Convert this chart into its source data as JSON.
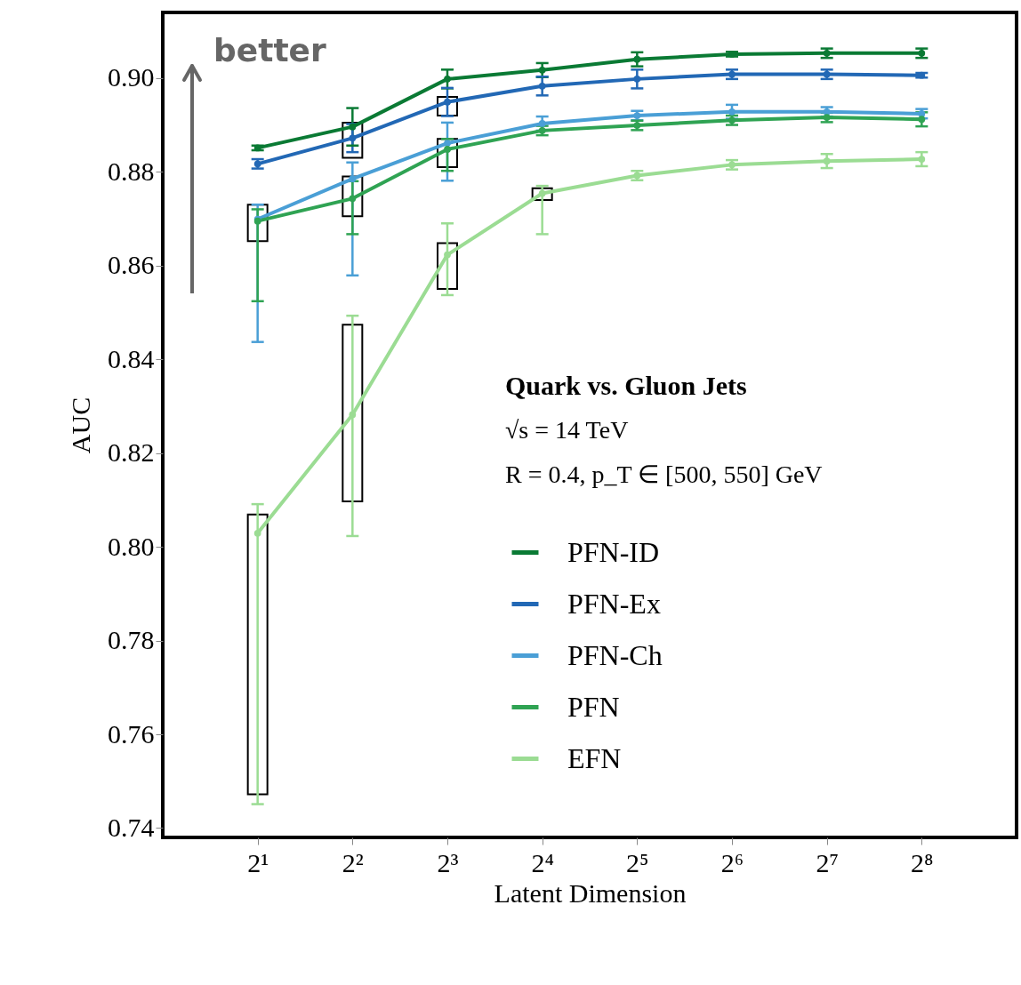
{
  "chart_data": {
    "type": "line",
    "xlabel": "Latent Dimension",
    "ylabel": "AUC",
    "categories": [
      "2¹",
      "2²",
      "2³",
      "2⁴",
      "2⁵",
      "2⁶",
      "2⁷",
      "2⁸"
    ],
    "ylim": [
      0.738,
      0.914
    ],
    "yticks": [
      {
        "value": 0.74,
        "label": "0.74"
      },
      {
        "value": 0.76,
        "label": "0.76"
      },
      {
        "value": 0.78,
        "label": "0.78"
      },
      {
        "value": 0.8,
        "label": "0.80"
      },
      {
        "value": 0.82,
        "label": "0.82"
      },
      {
        "value": 0.84,
        "label": "0.84"
      },
      {
        "value": 0.86,
        "label": "0.86"
      },
      {
        "value": 0.88,
        "label": "0.88"
      },
      {
        "value": 0.9,
        "label": "0.90"
      }
    ],
    "grid": false,
    "legend": "bottom right",
    "marker": "circle",
    "line_style": "solid",
    "annotations": [
      "better",
      "Quark vs. Gluon Jets",
      "√s = 14 TeV",
      "R = 0.4, p_T ∈ [500, 550] GeV"
    ],
    "series": [
      {
        "type": "bar",
        "color": "#000000",
        "base": [
          0.7472,
          0.8097,
          0.855,
          0.874,
          null,
          null,
          null,
          null
        ],
        "values": [
          0.0597,
          0.0377,
          0.0098,
          0.0025,
          null,
          null,
          null,
          null
        ]
      },
      {
        "type": "bar",
        "color": "#000000",
        "base": [
          0.8652,
          0.8705,
          0.881,
          null,
          null,
          null,
          null,
          null
        ],
        "values": [
          0.0078,
          0.0085,
          0.006,
          null,
          null,
          null,
          null,
          null
        ]
      },
      {
        "type": "bar",
        "color": "#000000",
        "base": [
          null,
          0.883,
          0.892,
          null,
          null,
          null,
          null,
          null
        ],
        "values": [
          null,
          0.0075,
          0.004,
          null,
          null,
          null,
          null,
          null
        ]
      },
      {
        "name": "PFN-ID",
        "color": "#0a7a34",
        "values": [
          0.8851,
          0.8896,
          0.8998,
          0.9017,
          0.904,
          0.9051,
          0.9053,
          0.9053
        ],
        "errors": [
          0.0005,
          0.004,
          0.002,
          0.0015,
          0.0015,
          0.0005,
          0.001,
          0.001
        ]
      },
      {
        "name": "PFN-Ex",
        "color": "#2268b5",
        "values": [
          0.8817,
          0.8872,
          0.8949,
          0.8983,
          0.8998,
          0.9008,
          0.9008,
          0.9006
        ],
        "errors": [
          0.001,
          0.003,
          0.003,
          0.002,
          0.002,
          0.001,
          0.001,
          0.0005
        ]
      },
      {
        "name": "PFN-Ch",
        "color": "#4a9fd6",
        "values": [
          0.8699,
          0.8785,
          0.8861,
          0.8903,
          0.892,
          0.8928,
          0.8928,
          0.8924
        ],
        "errors": [
          [
            0.8437,
            0.873
          ],
          [
            0.8579,
            0.882
          ],
          [
            0.8781,
            0.8905
          ],
          0.0015,
          0.001,
          0.0015,
          0.001,
          0.001
        ]
      },
      {
        "name": "PFN",
        "color": "#2fa353",
        "values": [
          0.8695,
          0.8743,
          0.8848,
          0.8888,
          0.8899,
          0.891,
          0.8916,
          0.8912
        ],
        "errors": [
          [
            0.8524,
            0.872
          ],
          [
            0.8667,
            0.878
          ],
          [
            0.8802,
            0.887
          ],
          0.001,
          0.001,
          0.001,
          0.001,
          0.0015
        ]
      },
      {
        "name": "EFN",
        "color": "#9bdc93",
        "values": [
          0.8029,
          0.8282,
          0.8623,
          0.8754,
          0.8792,
          0.8815,
          0.8823,
          0.8827
        ],
        "errors": [
          [
            0.7451,
            0.8091
          ],
          [
            0.8023,
            0.8493
          ],
          [
            0.8537,
            0.869
          ],
          [
            0.8667,
            0.877
          ],
          0.001,
          0.001,
          0.0015,
          0.0015
        ]
      }
    ]
  }
}
